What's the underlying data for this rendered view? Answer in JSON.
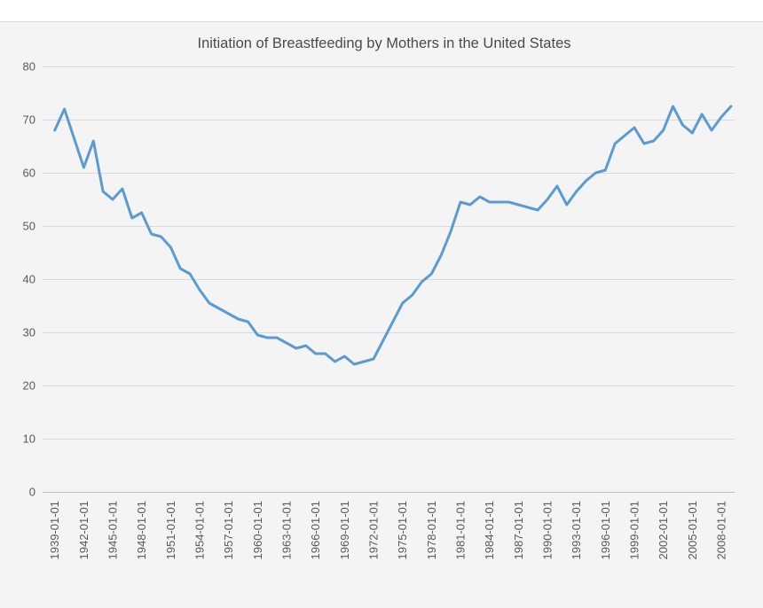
{
  "chart_data": {
    "type": "line",
    "title": "Initiation of Breastfeeding by Mothers in the United States",
    "xlabel": "",
    "ylabel": "",
    "legend": "none",
    "grid": "horizontal",
    "ylim": [
      0,
      80
    ],
    "y_ticks": [
      0,
      10,
      20,
      30,
      40,
      50,
      60,
      70,
      80
    ],
    "x_tick_labels": [
      "1939-01-01",
      "1942-01-01",
      "1945-01-01",
      "1948-01-01",
      "1951-01-01",
      "1954-01-01",
      "1957-01-01",
      "1960-01-01",
      "1963-01-01",
      "1966-01-01",
      "1969-01-01",
      "1972-01-01",
      "1975-01-01",
      "1978-01-01",
      "1981-01-01",
      "1984-01-01",
      "1987-01-01",
      "1990-01-01",
      "1993-01-01",
      "1996-01-01",
      "1999-01-01",
      "2002-01-01",
      "2005-01-01",
      "2008-01-01"
    ],
    "x": [
      "1939-01-01",
      "1940-01-01",
      "1941-01-01",
      "1942-01-01",
      "1943-01-01",
      "1944-01-01",
      "1945-01-01",
      "1946-01-01",
      "1947-01-01",
      "1948-01-01",
      "1949-01-01",
      "1950-01-01",
      "1951-01-01",
      "1952-01-01",
      "1953-01-01",
      "1954-01-01",
      "1955-01-01",
      "1956-01-01",
      "1957-01-01",
      "1958-01-01",
      "1959-01-01",
      "1960-01-01",
      "1961-01-01",
      "1962-01-01",
      "1963-01-01",
      "1964-01-01",
      "1965-01-01",
      "1966-01-01",
      "1967-01-01",
      "1968-01-01",
      "1969-01-01",
      "1970-01-01",
      "1971-01-01",
      "1972-01-01",
      "1973-01-01",
      "1974-01-01",
      "1975-01-01",
      "1976-01-01",
      "1977-01-01",
      "1978-01-01",
      "1979-01-01",
      "1980-01-01",
      "1981-01-01",
      "1982-01-01",
      "1983-01-01",
      "1984-01-01",
      "1985-01-01",
      "1986-01-01",
      "1987-01-01",
      "1988-01-01",
      "1989-01-01",
      "1990-01-01",
      "1991-01-01",
      "1992-01-01",
      "1993-01-01",
      "1994-01-01",
      "1995-01-01",
      "1996-01-01",
      "1997-01-01",
      "1998-01-01",
      "1999-01-01",
      "2000-01-01",
      "2001-01-01",
      "2002-01-01",
      "2003-01-01",
      "2004-01-01",
      "2005-01-01",
      "2006-01-01",
      "2007-01-01",
      "2008-01-01",
      "2009-01-01"
    ],
    "values": [
      68,
      72,
      66.5,
      61,
      66,
      56.5,
      55,
      57,
      51.5,
      52.5,
      48.5,
      48,
      46,
      42,
      41,
      38,
      35.5,
      34.5,
      33.5,
      32.5,
      32,
      29.5,
      29,
      29,
      28,
      27,
      27.5,
      26,
      26,
      24.5,
      25.5,
      24,
      24.5,
      25,
      28.5,
      32,
      35.5,
      37,
      39.5,
      41,
      44.5,
      49,
      54.5,
      54,
      55.5,
      54.5,
      54.5,
      54.5,
      54,
      53.5,
      53,
      55,
      57.5,
      54,
      56.5,
      58.5,
      60,
      60.5,
      65.5,
      67,
      68.5,
      65.5,
      66,
      68,
      72.5,
      69,
      67.5,
      71,
      68,
      70.5,
      72.5
    ]
  },
  "colors": {
    "line": "#5b9bd5",
    "grid": "#dadada",
    "axis_line": "#c0c0c0",
    "tick_text": "#595959",
    "title_text": "#4a4a4a",
    "panel_bg": "#f4f4f4",
    "page_bg": "#ffffff",
    "panel_border": "#d9d9d9"
  }
}
